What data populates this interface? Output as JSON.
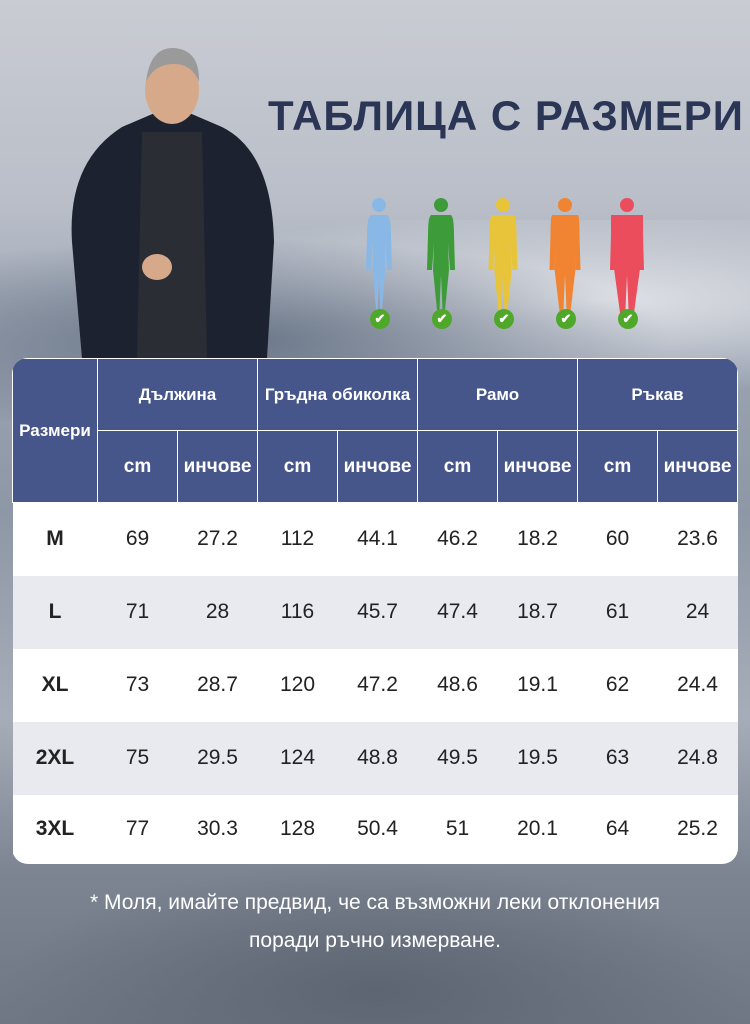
{
  "title": "ТАБЛИЦА С РАЗМЕРИ",
  "figures": [
    {
      "color": "#8ab8e6"
    },
    {
      "color": "#3e9b3a"
    },
    {
      "color": "#e8c43a"
    },
    {
      "color": "#f08432"
    },
    {
      "color": "#ec4d5c"
    }
  ],
  "table": {
    "size_header": "Размери",
    "groups": [
      "Дължина",
      "Гръдна обиколка",
      "Рамо",
      "Ръкав"
    ],
    "units": [
      "cm",
      "инчове",
      "cm",
      "инчове",
      "cm",
      "инчове",
      "cm",
      "инчове"
    ],
    "rows": [
      {
        "size": "M",
        "values": [
          "69",
          "27.2",
          "112",
          "44.1",
          "46.2",
          "18.2",
          "60",
          "23.6"
        ]
      },
      {
        "size": "L",
        "values": [
          "71",
          "28",
          "116",
          "45.7",
          "47.4",
          "18.7",
          "61",
          "24"
        ]
      },
      {
        "size": "XL",
        "values": [
          "73",
          "28.7",
          "120",
          "47.2",
          "48.6",
          "19.1",
          "62",
          "24.4"
        ]
      },
      {
        "size": "2XL",
        "values": [
          "75",
          "29.5",
          "124",
          "48.8",
          "49.5",
          "19.5",
          "63",
          "24.8"
        ]
      },
      {
        "size": "3XL",
        "values": [
          "77",
          "30.3",
          "128",
          "50.4",
          "51",
          "20.1",
          "64",
          "25.2"
        ]
      }
    ]
  },
  "note": {
    "line1": "* Моля, имайте предвид, че са възможни леки отклонения",
    "line2": "поради ръчно измерване."
  },
  "colors": {
    "header": "#46568a",
    "title": "#2b3656"
  }
}
